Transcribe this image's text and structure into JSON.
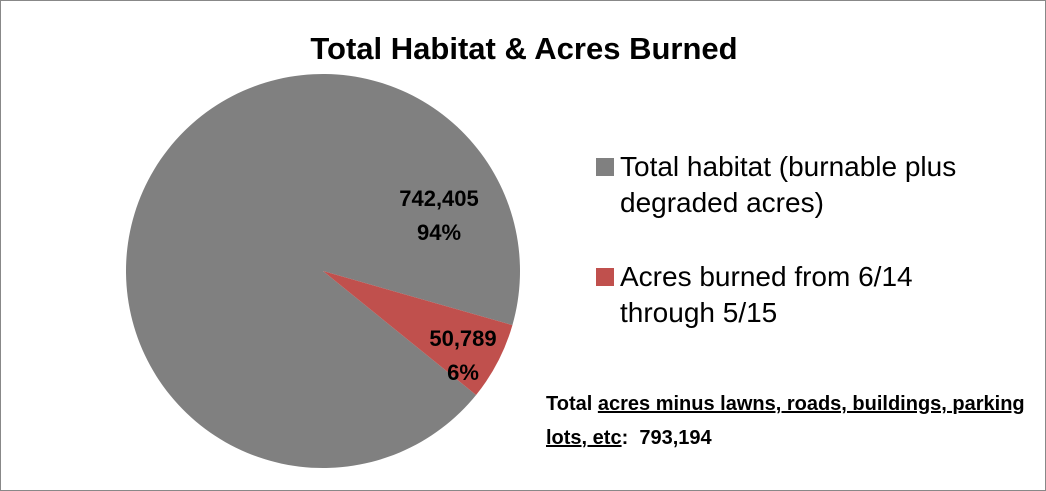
{
  "chart_data": {
    "type": "pie",
    "title": "Total Habitat & Acres Burned",
    "categories": [
      "Total habitat (burnable plus degraded acres)",
      "Acres burned from 6/14 through 5/15"
    ],
    "values": [
      742405,
      50789
    ],
    "value_labels": [
      "742,405",
      "50,789"
    ],
    "percent_labels": [
      "94%",
      "6%"
    ],
    "colors": [
      "#808080",
      "#c0504d"
    ],
    "legend": "right",
    "annotation": {
      "prefix": "Total",
      "underlined": "acres minus lawns, roads, buildings, parking lots, etc",
      "suffix": ":",
      "total_label": "793,194"
    }
  }
}
